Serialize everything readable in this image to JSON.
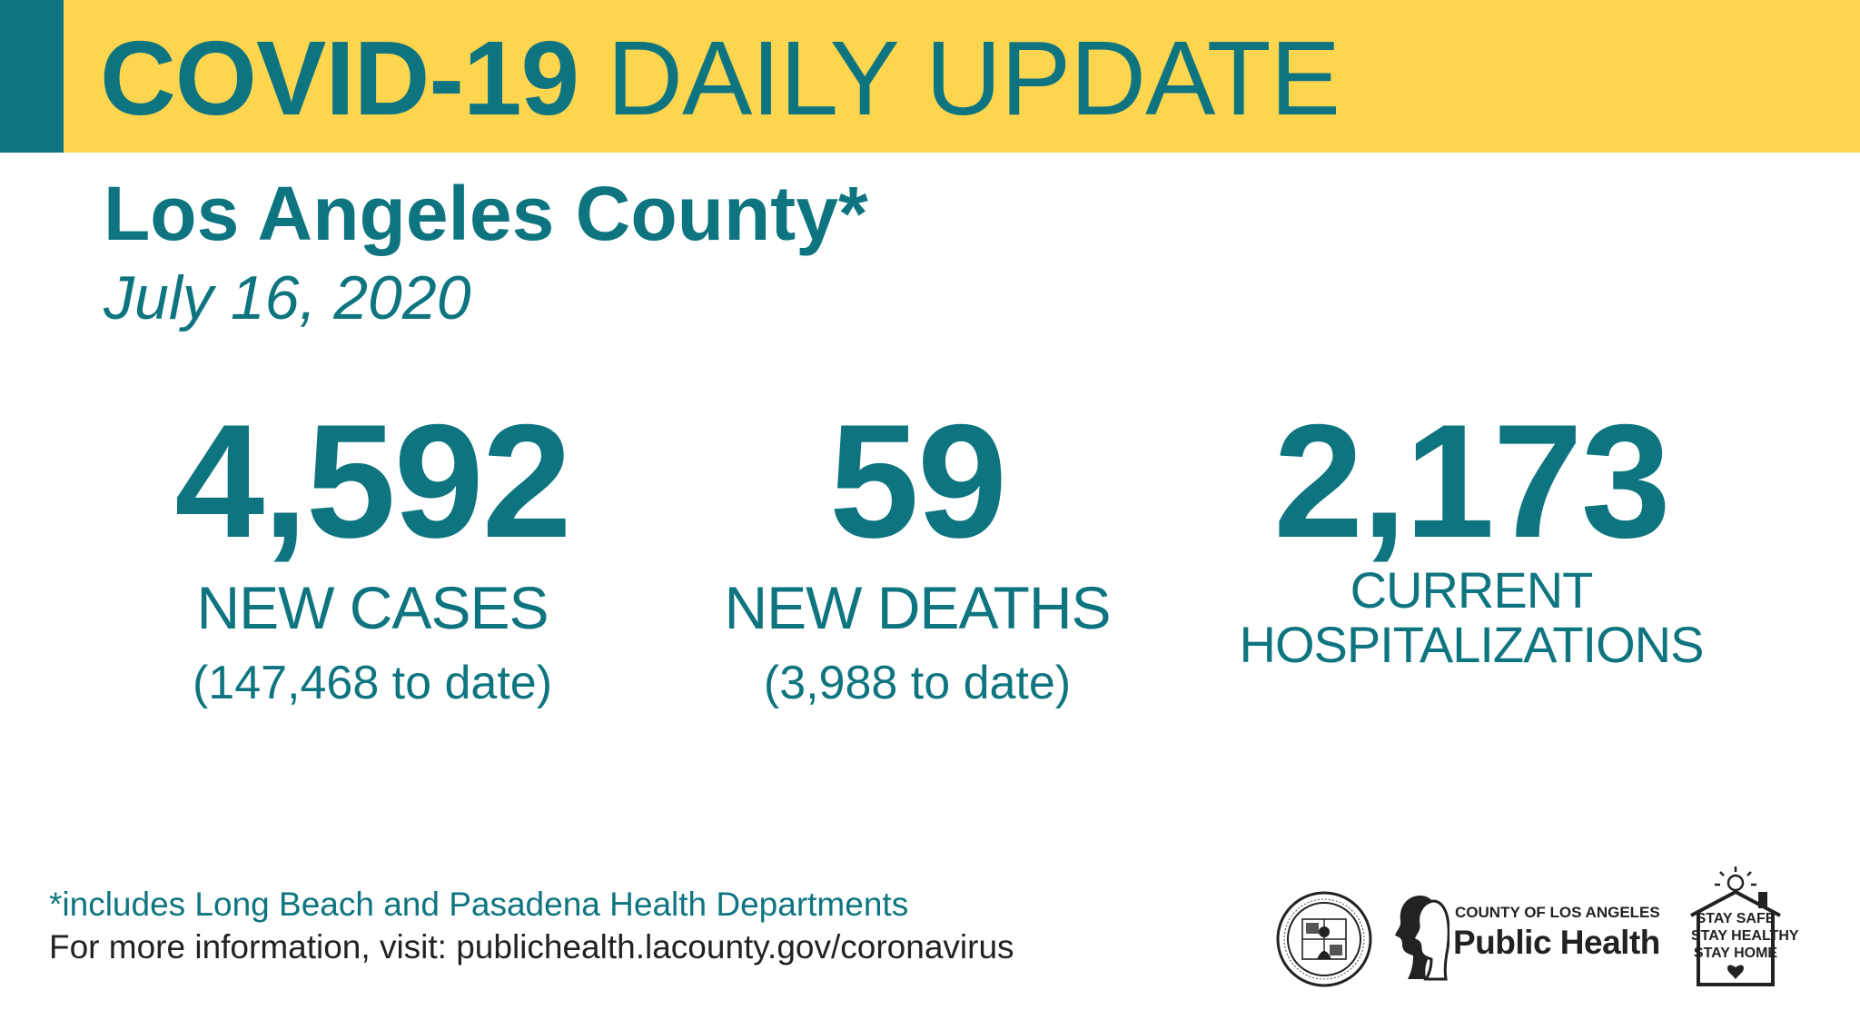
{
  "header": {
    "title_bold": "COVID-19",
    "title_rest": "DAILY UPDATE",
    "county": "Los Angeles County*",
    "date": "July 16, 2020"
  },
  "stats": {
    "cases": {
      "value": "4,592",
      "label": "NEW CASES",
      "to_date": "(147,468 to date)"
    },
    "deaths": {
      "value": "59",
      "label": "NEW DEATHS",
      "to_date": "(3,988 to date)"
    },
    "hospitalizations": {
      "value": "2,173",
      "label_line1": "CURRENT",
      "label_line2": "HOSPITALIZATIONS"
    }
  },
  "footer": {
    "note": "*includes Long Beach and Pasadena Health Departments",
    "info": "For more information, visit: publichealth.lacounty.gov/coronavirus"
  },
  "logos": {
    "seal_icon": "county-seal-icon",
    "public_health_small": "COUNTY OF LOS ANGELES",
    "public_health_big": "Public Health",
    "stay_line1": "STAY SAFE",
    "stay_line2": "STAY HEALTHY",
    "stay_line3": "STAY HOME"
  },
  "colors": {
    "teal": "#0e7580",
    "yellow": "#fdd54f",
    "dark_text": "#222222"
  }
}
